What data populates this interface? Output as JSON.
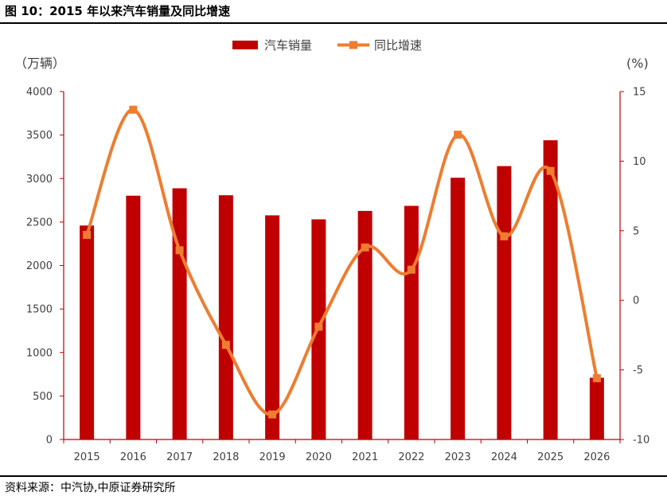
{
  "figure_title": "图 10：2015 年以来汽车销量及同比增速",
  "source": "资料来源：中汽协,中原证券研究所",
  "colors": {
    "bar": "#C00000",
    "line": "#ED7D31",
    "axis_right": "#C00000",
    "axis_left": "#C00000",
    "text": "#404040"
  },
  "chart_data": {
    "type": "bar",
    "categories": [
      "2015",
      "2016",
      "2017",
      "2018",
      "2019",
      "2020",
      "2021",
      "2022",
      "2023",
      "2024",
      "2025",
      "2026"
    ],
    "series": [
      {
        "name": "汽车销量",
        "type": "bar",
        "axis": "left",
        "values": [
          2460,
          2803,
          2888,
          2808,
          2577,
          2531,
          2628,
          2686,
          3009,
          3143,
          3440,
          710
        ]
      },
      {
        "name": "同比增速",
        "type": "line",
        "axis": "right",
        "smooth": true,
        "marker": "square",
        "values": [
          4.7,
          13.7,
          3.6,
          -3.2,
          -8.2,
          -1.9,
          3.8,
          2.2,
          11.9,
          4.6,
          9.3,
          -5.6
        ]
      }
    ],
    "left_axis": {
      "unit": "（万辆）",
      "ylim": [
        0,
        4000
      ],
      "ticks": [
        0,
        500,
        1000,
        1500,
        2000,
        2500,
        3000,
        3500,
        4000
      ]
    },
    "right_axis": {
      "unit": "(%)",
      "ylim": [
        -10,
        15
      ],
      "ticks": [
        -10,
        -5,
        0,
        5,
        10,
        15
      ]
    },
    "legend": "top-center",
    "grid": false
  }
}
